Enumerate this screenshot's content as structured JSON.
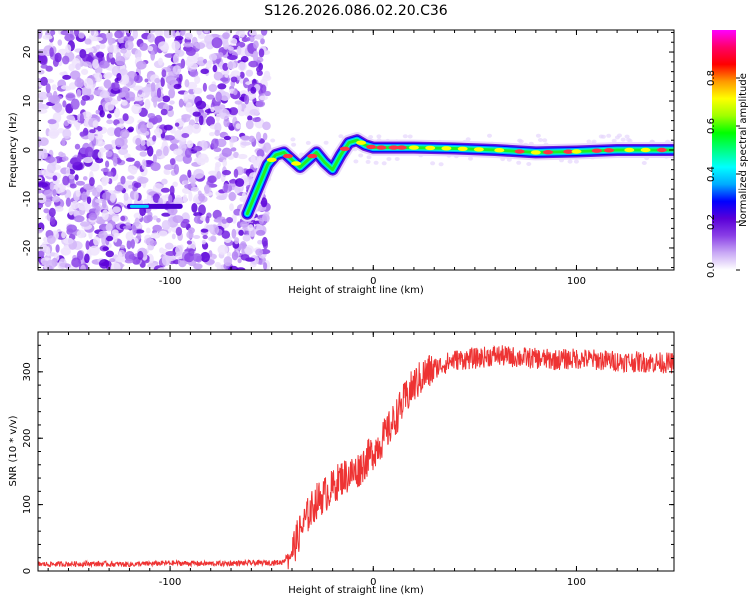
{
  "title": "S126.2026.086.02.20.C36",
  "chart_data": [
    {
      "type": "heatmap",
      "xlabel": "Height of straight line (km)",
      "ylabel": "Frequency (Hz)",
      "xlim": [
        -165,
        148
      ],
      "ylim": [
        -24.5,
        24.5
      ],
      "xticks": [
        -100,
        0,
        100
      ],
      "yticks": [
        -20,
        -10,
        0,
        10,
        20
      ],
      "colorbar": {
        "label": "Normalized spectral amplitude",
        "range": [
          0,
          1
        ],
        "ticks": [
          0.0,
          0.2,
          0.4,
          0.6,
          0.8
        ],
        "colors": [
          "#ffffff",
          "#c9a9f5",
          "#8a3fe6",
          "#5a00d8",
          "#0000ff",
          "#00aaff",
          "#00ffff",
          "#00ff80",
          "#00ff00",
          "#a0ff00",
          "#ffff00",
          "#ff9900",
          "#ff0000",
          "#ff0066",
          "#ff00ff"
        ]
      },
      "noise_region_x": [
        -165,
        -52
      ],
      "side_line": {
        "x": [
          -120,
          -95
        ],
        "y": -11.5
      },
      "ridge": [
        [
          -62,
          -13
        ],
        [
          -58,
          -9
        ],
        [
          -55,
          -6
        ],
        [
          -52,
          -3
        ],
        [
          -48,
          -1
        ],
        [
          -44,
          -0.5
        ],
        [
          -40,
          -2
        ],
        [
          -36,
          -3.5
        ],
        [
          -32,
          -2
        ],
        [
          -28,
          -0.5
        ],
        [
          -24,
          -2.5
        ],
        [
          -20,
          -4
        ],
        [
          -16,
          -1
        ],
        [
          -12,
          1.5
        ],
        [
          -8,
          2
        ],
        [
          -4,
          1
        ],
        [
          0,
          0.5
        ],
        [
          20,
          0.5
        ],
        [
          40,
          0.3
        ],
        [
          60,
          0
        ],
        [
          80,
          -0.5
        ],
        [
          100,
          -0.3
        ],
        [
          120,
          0
        ],
        [
          148,
          0
        ]
      ]
    },
    {
      "type": "line",
      "xlabel": "Height of straight line (km)",
      "ylabel": "SNR (10 * v/v)",
      "xlim": [
        -165,
        148
      ],
      "ylim": [
        0,
        360
      ],
      "xticks": [
        -100,
        0,
        100
      ],
      "yticks": [
        0,
        100,
        200,
        300
      ],
      "color": "#ee3333",
      "series": [
        {
          "x": [
            -165,
            -140,
            -120,
            -100,
            -80,
            -60,
            -45,
            -40,
            -36,
            -32,
            -28,
            -24,
            -20,
            -16,
            -12,
            -8,
            -4,
            0,
            5,
            10,
            15,
            20,
            25,
            30,
            35,
            40,
            50,
            60,
            70,
            80,
            90,
            100,
            110,
            120,
            130,
            140,
            148
          ],
          "y": [
            10,
            11,
            10,
            12,
            11,
            12,
            13,
            30,
            60,
            85,
            105,
            115,
            125,
            140,
            145,
            150,
            165,
            180,
            200,
            225,
            255,
            280,
            295,
            305,
            312,
            318,
            320,
            325,
            322,
            320,
            318,
            320,
            318,
            316,
            315,
            314,
            313
          ]
        }
      ]
    }
  ]
}
